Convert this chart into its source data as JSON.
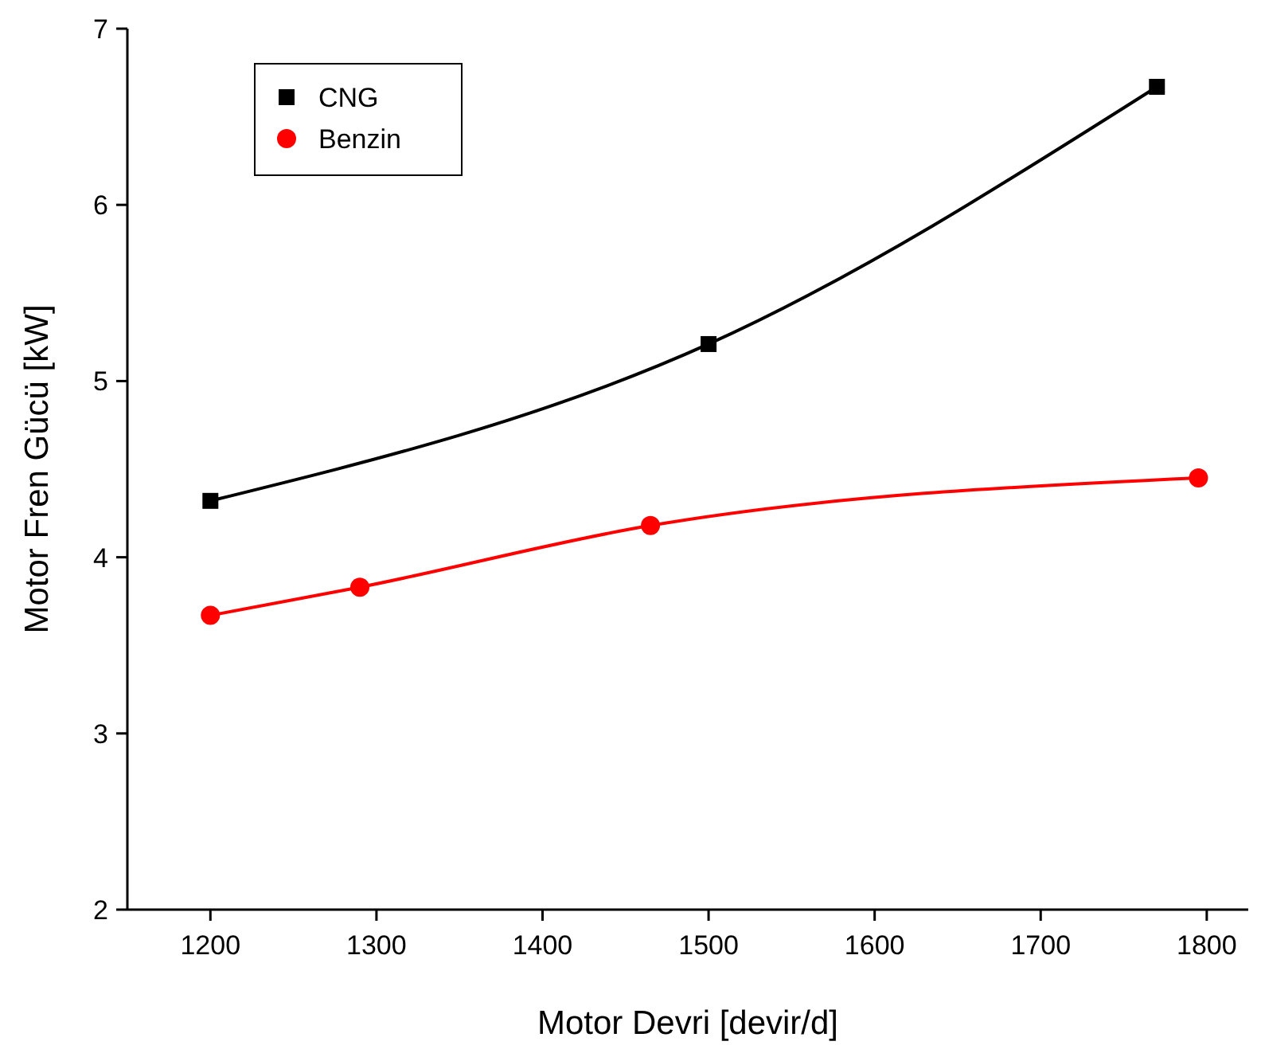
{
  "chart_data": {
    "type": "line",
    "xlabel": "Motor Devri [devir/d]",
    "ylabel": "Motor Fren Gücü [kW]",
    "xlim": [
      1150,
      1825
    ],
    "xticks": [
      1200,
      1300,
      1400,
      1500,
      1600,
      1700,
      1800
    ],
    "ylim": [
      2,
      7
    ],
    "yticks": [
      2,
      3,
      4,
      5,
      6,
      7
    ],
    "legend": "top left",
    "grid": false,
    "line_style": "solid",
    "series": [
      {
        "name": "CNG",
        "color": "#000000",
        "marker": "square",
        "x": [
          1200,
          1500,
          1770
        ],
        "values": [
          4.32,
          5.21,
          6.67
        ]
      },
      {
        "name": "Benzin",
        "color": "#ff0000",
        "marker": "circle",
        "x": [
          1200,
          1290,
          1465,
          1795
        ],
        "values": [
          3.67,
          3.83,
          4.18,
          4.45
        ]
      }
    ]
  }
}
